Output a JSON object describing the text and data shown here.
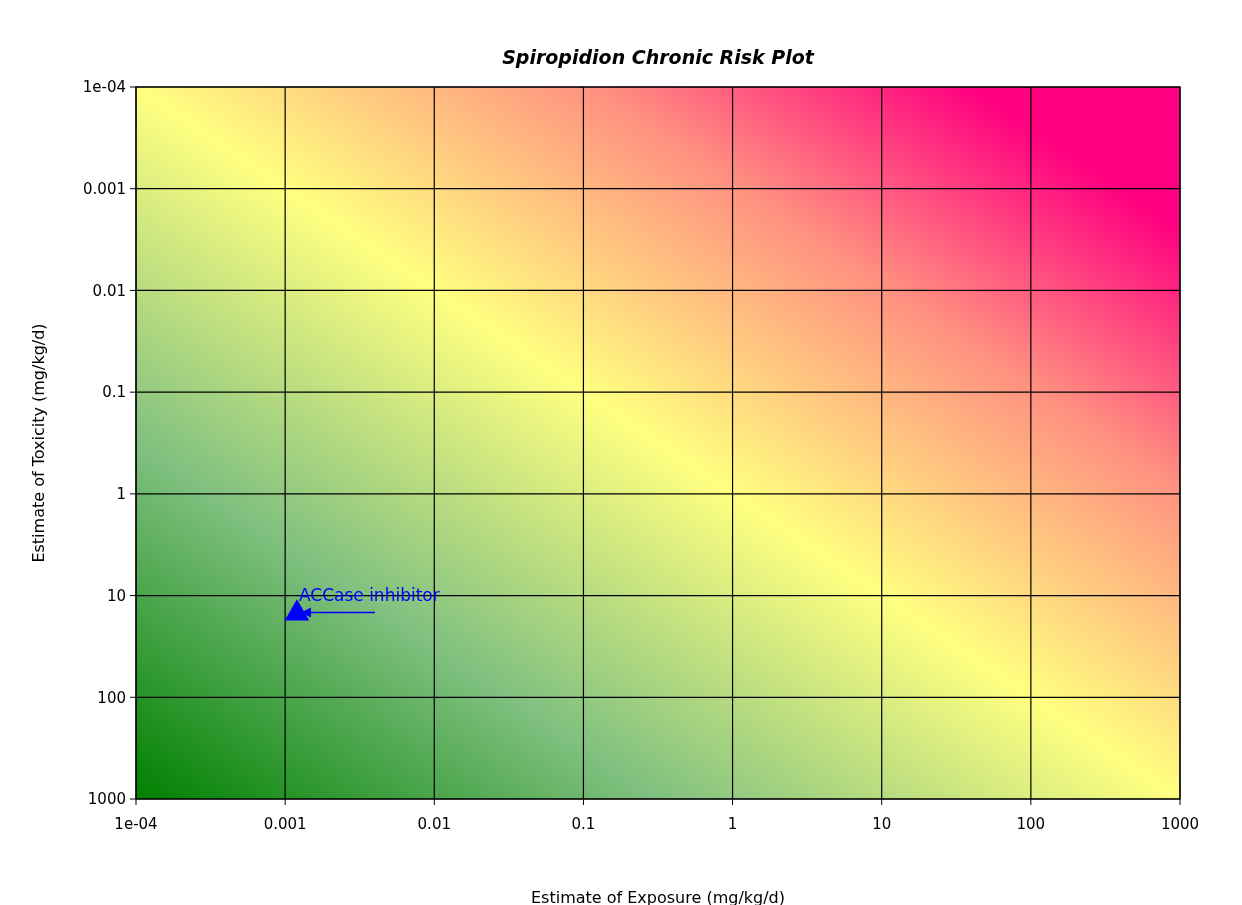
{
  "chart_data": {
    "type": "scatter",
    "title": "Spiropidion Chronic Risk Plot",
    "xlabel": "Estimate of Exposure (mg/kg/d)",
    "ylabel": "Estimate of Toxicity (mg/kg/d)",
    "x": [
      0.0012
    ],
    "values": [
      14
    ],
    "color": "#0000ff",
    "marker": "triangle",
    "annotations": [
      {
        "text": "ACCase inhibitor",
        "x": 0.0012,
        "y": 14
      }
    ],
    "log": "xy",
    "grid": true,
    "xlim": [
      0.0001,
      1000
    ],
    "ylim": [
      1000,
      0.0001
    ],
    "xticks": [
      {
        "value": 0.0001,
        "label": "1e-04"
      },
      0.001,
      0.01,
      0.1,
      1,
      10,
      100,
      1000
    ],
    "yticks": [
      {
        "value": 0.0001,
        "label": "1e-04"
      },
      0.001,
      0.01,
      0.1,
      1,
      10,
      100,
      1000
    ]
  }
}
